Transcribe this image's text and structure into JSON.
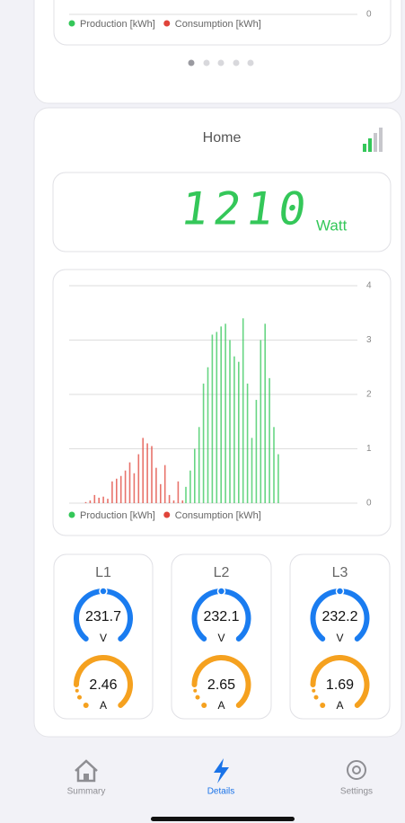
{
  "top_card": {
    "chart": {
      "yticks": [
        0
      ],
      "legend": [
        "Production [kWh]",
        "Consumption [kWh]"
      ]
    }
  },
  "home": {
    "title": "Home",
    "display": {
      "value": "1210",
      "unit": "Watt"
    },
    "chart": {
      "type": "bar",
      "ylim": [
        0,
        4
      ],
      "yticks": [
        0,
        1,
        2,
        3,
        4
      ],
      "grid": true,
      "series": [
        {
          "name": "Production [kWh]",
          "color": "#34c759",
          "values": [
            0,
            0,
            0,
            0,
            0,
            0,
            0,
            0,
            0,
            0,
            0,
            0,
            0,
            0,
            0,
            0,
            0,
            0,
            0,
            0,
            0,
            0,
            0,
            0,
            0,
            0,
            0.3,
            0.6,
            1.0,
            1.4,
            2.2,
            2.5,
            3.1,
            3.15,
            3.25,
            3.3,
            3.0,
            2.7,
            2.6,
            3.4,
            2.2,
            1.2,
            1.9,
            3.0,
            3.3,
            2.3,
            1.4,
            0.9
          ]
        },
        {
          "name": "Consumption [kWh]",
          "color": "#e0443a",
          "values": [
            0,
            0,
            0,
            0.02,
            0.05,
            0.15,
            0.1,
            0.12,
            0.08,
            0.4,
            0.45,
            0.5,
            0.6,
            0.75,
            0.55,
            0.9,
            1.2,
            1.1,
            1.05,
            0.65,
            0.35,
            0.7,
            0.15,
            0.05,
            0.4,
            0.05,
            0,
            0,
            0,
            0,
            0,
            0,
            0,
            0,
            0,
            0,
            0,
            0,
            0,
            0,
            0,
            0,
            0,
            0,
            0,
            0,
            0,
            0
          ]
        }
      ]
    }
  },
  "phases": [
    {
      "label": "L1",
      "voltage": "231.7",
      "voltage_unit": "V",
      "current": "2.46",
      "current_unit": "A"
    },
    {
      "label": "L2",
      "voltage": "232.1",
      "voltage_unit": "V",
      "current": "2.65",
      "current_unit": "A"
    },
    {
      "label": "L3",
      "voltage": "232.2",
      "voltage_unit": "V",
      "current": "1.69",
      "current_unit": "A"
    }
  ],
  "tabs": [
    {
      "label": "Summary"
    },
    {
      "label": "Details"
    },
    {
      "label": "Settings"
    }
  ]
}
